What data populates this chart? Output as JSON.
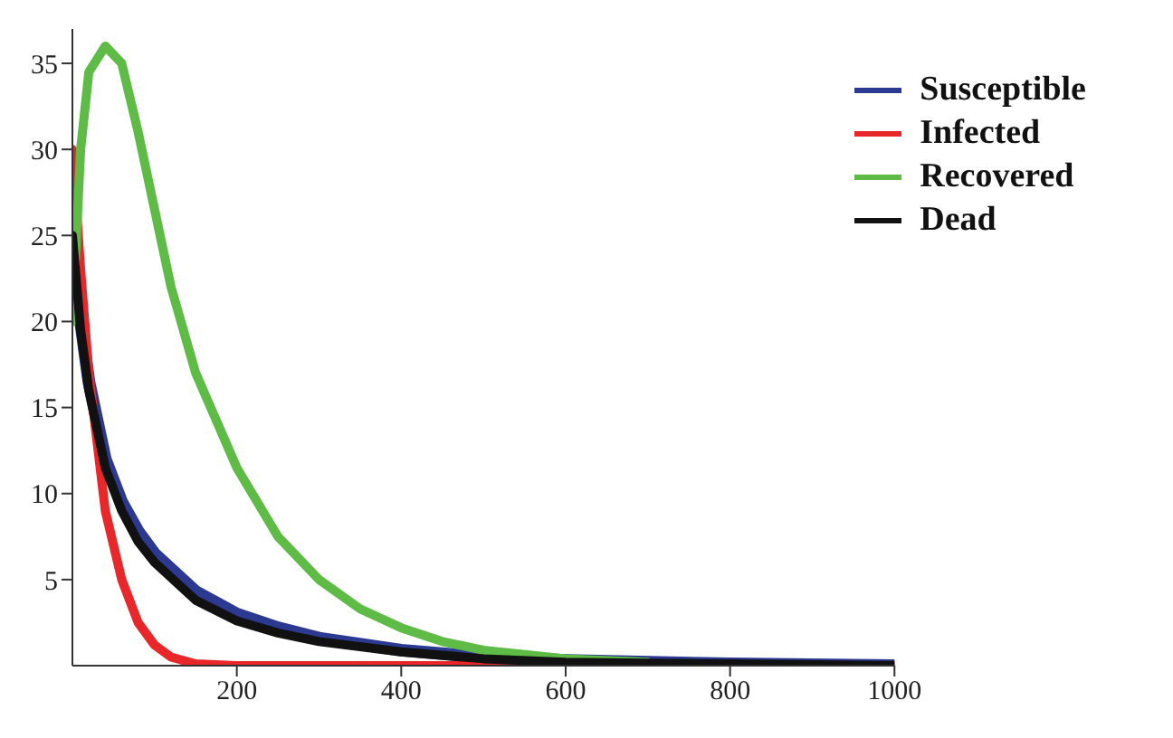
{
  "chart_data": {
    "type": "line",
    "xlim": [
      0,
      1000
    ],
    "ylim": [
      0,
      37
    ],
    "xticks": [
      200,
      400,
      600,
      800,
      1000
    ],
    "yticks": [
      5,
      10,
      15,
      20,
      25,
      30,
      35
    ],
    "grid": false,
    "legend": "top right",
    "marker": "none",
    "line_style": "solid",
    "series": [
      {
        "name": "Susceptible",
        "color": "#2b3990",
        "x": [
          0,
          10,
          20,
          40,
          60,
          80,
          100,
          150,
          200,
          250,
          300,
          400,
          500,
          600,
          800,
          1000
        ],
        "values": [
          25,
          20,
          16.5,
          12,
          9.5,
          7.8,
          6.5,
          4.3,
          3,
          2.2,
          1.6,
          0.9,
          0.5,
          0.3,
          0.1,
          0
        ]
      },
      {
        "name": "Infected",
        "color": "#e8272a",
        "x": [
          0,
          10,
          20,
          40,
          60,
          80,
          100,
          120,
          150,
          200,
          400,
          600,
          1000
        ],
        "values": [
          30,
          23,
          17,
          9,
          5,
          2.5,
          1.2,
          0.5,
          0.1,
          0,
          0,
          0,
          0
        ]
      },
      {
        "name": "Recovered",
        "color": "#5dbb46",
        "x": [
          0,
          10,
          20,
          40,
          60,
          80,
          100,
          120,
          150,
          200,
          250,
          300,
          350,
          400,
          450,
          500,
          600,
          700
        ],
        "values": [
          20,
          30,
          34.5,
          36,
          35,
          31,
          26.5,
          22,
          17,
          11.5,
          7.5,
          5,
          3.3,
          2.2,
          1.4,
          0.9,
          0.4,
          0.2
        ]
      },
      {
        "name": "Dead",
        "color": "#111111",
        "x": [
          0,
          10,
          20,
          40,
          60,
          80,
          100,
          150,
          200,
          250,
          300,
          400,
          500,
          600,
          800,
          1000
        ],
        "values": [
          25,
          19.5,
          16,
          11.5,
          9,
          7.2,
          6,
          3.8,
          2.6,
          1.9,
          1.4,
          0.8,
          0.4,
          0.2,
          0.1,
          0
        ]
      }
    ]
  }
}
